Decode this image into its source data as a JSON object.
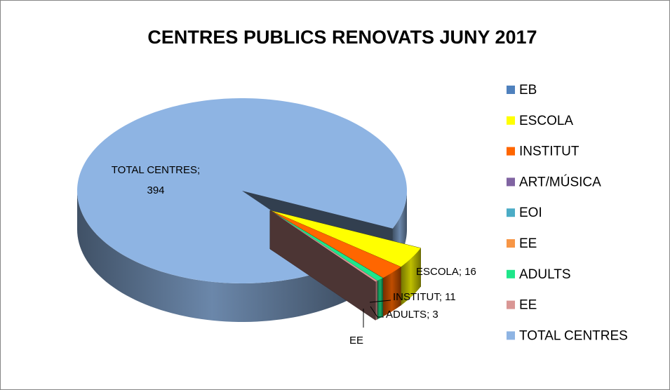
{
  "chart_data": {
    "type": "pie3d",
    "title": "CENTRES PUBLICS RENOVATS JUNY 2017",
    "categories": [
      "EB",
      "ESCOLA",
      "INSTITUT",
      "ART/MÚSICA",
      "EOI",
      "EE",
      "ADULTS",
      "EE",
      "TOTAL CENTRES"
    ],
    "values": [
      0,
      16,
      11,
      0,
      0,
      0,
      3,
      1,
      394
    ],
    "value_labels": [
      null,
      "ESCOLA; 16",
      "INSTITUT; 11",
      null,
      null,
      null,
      "ADULTS; 3",
      "EE",
      "TOTAL CENTRES; 394"
    ],
    "colors": [
      "#4f81bd",
      "#ffff00",
      "#ff6600",
      "#8064a2",
      "#4bacc6",
      "#f79646",
      "#1ee68a",
      "#d99694",
      "#8eb4e3"
    ],
    "legend": "right"
  }
}
